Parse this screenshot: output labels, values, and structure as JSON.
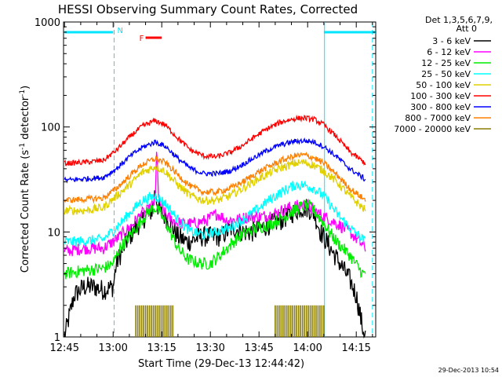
{
  "chart_data": {
    "type": "line",
    "title": "HESSI Observing Summary Count Rates, Corrected",
    "xlabel": "Start Time (29-Dec-13 12:44:42)",
    "ylabel_main": "Corrected Count Rate (s",
    "ylabel_sup1": "-1",
    "ylabel_mid": " detector",
    "ylabel_sup2": "-1",
    "ylabel_end": ")",
    "yscale": "log",
    "ylim": [
      1,
      1000
    ],
    "xlim": [
      -0.3,
      96
    ],
    "x_unit": "minutes after 12:45",
    "xtick_labels": [
      {
        "t": 0,
        "label": "12:45"
      },
      {
        "t": 15,
        "label": "13:00"
      },
      {
        "t": 30,
        "label": "13:15"
      },
      {
        "t": 45,
        "label": "13:30"
      },
      {
        "t": 60,
        "label": "13:45"
      },
      {
        "t": 75,
        "label": "14:00"
      },
      {
        "t": 90,
        "label": "14:15"
      }
    ],
    "ytick_labels": [
      {
        "v": 1,
        "label": "1"
      },
      {
        "v": 10,
        "label": "10"
      },
      {
        "v": 100,
        "label": "100"
      },
      {
        "v": 1000,
        "label": "1000"
      }
    ],
    "legend": {
      "header1": "Det 1,3,5,6,7,9,",
      "header2": "Att 0",
      "position": "right"
    },
    "series": [
      {
        "name": "3 - 6 keV",
        "color": "#000000",
        "points": [
          [
            0,
            1
          ],
          [
            3,
            2.5
          ],
          [
            6,
            3
          ],
          [
            9,
            3
          ],
          [
            12,
            2.8
          ],
          [
            15,
            3
          ],
          [
            16,
            5
          ],
          [
            19,
            8
          ],
          [
            22,
            11
          ],
          [
            25,
            14
          ],
          [
            27,
            16
          ],
          [
            28,
            25
          ],
          [
            29,
            16
          ],
          [
            30,
            15
          ],
          [
            32,
            13
          ],
          [
            35,
            9
          ],
          [
            38,
            8
          ],
          [
            42,
            9
          ],
          [
            45,
            9
          ],
          [
            48,
            9
          ],
          [
            50,
            10
          ],
          [
            52,
            11
          ],
          [
            55,
            10
          ],
          [
            58,
            10
          ],
          [
            61,
            11
          ],
          [
            64,
            12
          ],
          [
            67,
            13
          ],
          [
            70,
            15
          ],
          [
            73,
            17
          ],
          [
            75,
            17
          ],
          [
            77,
            15
          ],
          [
            79,
            10
          ],
          [
            82,
            7
          ],
          [
            85,
            5
          ],
          [
            88,
            3.5
          ],
          [
            90,
            2.5
          ],
          [
            92,
            1.2
          ],
          [
            93,
            1
          ]
        ]
      },
      {
        "name": "6 - 12 keV",
        "color": "#ff00ff",
        "points": [
          [
            0,
            6.5
          ],
          [
            6,
            7
          ],
          [
            12,
            7
          ],
          [
            16,
            8.5
          ],
          [
            20,
            11
          ],
          [
            24,
            15
          ],
          [
            26,
            16
          ],
          [
            28,
            20
          ],
          [
            28.5,
            70
          ],
          [
            29,
            20
          ],
          [
            31,
            15
          ],
          [
            33,
            13
          ],
          [
            36,
            12
          ],
          [
            40,
            12
          ],
          [
            44,
            13
          ],
          [
            47,
            15
          ],
          [
            50,
            13
          ],
          [
            53,
            13
          ],
          [
            57,
            14
          ],
          [
            61,
            14
          ],
          [
            65,
            15
          ],
          [
            69,
            17
          ],
          [
            73,
            18
          ],
          [
            75,
            18
          ],
          [
            77,
            16
          ],
          [
            80,
            14
          ],
          [
            84,
            12
          ],
          [
            88,
            10
          ],
          [
            92,
            7.5
          ],
          [
            93,
            7
          ]
        ]
      },
      {
        "name": "12 - 25 keV",
        "color": "#00ee00",
        "points": [
          [
            0,
            4
          ],
          [
            6,
            4.3
          ],
          [
            12,
            4.5
          ],
          [
            15,
            5
          ],
          [
            17,
            7
          ],
          [
            20,
            9
          ],
          [
            23,
            12
          ],
          [
            26,
            16
          ],
          [
            28,
            17
          ],
          [
            29,
            16
          ],
          [
            32,
            11
          ],
          [
            35,
            7
          ],
          [
            38,
            5.5
          ],
          [
            42,
            5
          ],
          [
            45,
            5
          ],
          [
            48,
            6
          ],
          [
            52,
            8
          ],
          [
            56,
            10
          ],
          [
            60,
            11
          ],
          [
            64,
            12
          ],
          [
            68,
            14
          ],
          [
            72,
            17
          ],
          [
            75,
            18
          ],
          [
            77,
            16
          ],
          [
            80,
            12
          ],
          [
            84,
            8
          ],
          [
            88,
            6
          ],
          [
            92,
            4
          ],
          [
            93,
            4
          ]
        ]
      },
      {
        "name": "25 - 50 keV",
        "color": "#00ffff",
        "points": [
          [
            0,
            8
          ],
          [
            6,
            8.2
          ],
          [
            12,
            8.5
          ],
          [
            16,
            11
          ],
          [
            20,
            15
          ],
          [
            24,
            20
          ],
          [
            28,
            22
          ],
          [
            31,
            19
          ],
          [
            35,
            13
          ],
          [
            39,
            10
          ],
          [
            43,
            9.5
          ],
          [
            47,
            10
          ],
          [
            51,
            11
          ],
          [
            55,
            13
          ],
          [
            59,
            16
          ],
          [
            63,
            20
          ],
          [
            67,
            24
          ],
          [
            71,
            28
          ],
          [
            74,
            28
          ],
          [
            77,
            26
          ],
          [
            80,
            22
          ],
          [
            84,
            15
          ],
          [
            88,
            11
          ],
          [
            92,
            8.5
          ],
          [
            93,
            8
          ]
        ]
      },
      {
        "name": "50 - 100 keV",
        "color": "#e0d000",
        "points": [
          [
            0,
            16
          ],
          [
            6,
            16
          ],
          [
            12,
            17
          ],
          [
            16,
            22
          ],
          [
            20,
            28
          ],
          [
            24,
            37
          ],
          [
            28,
            42
          ],
          [
            31,
            38
          ],
          [
            35,
            28
          ],
          [
            39,
            22
          ],
          [
            43,
            20
          ],
          [
            47,
            20
          ],
          [
            51,
            22
          ],
          [
            55,
            26
          ],
          [
            59,
            31
          ],
          [
            63,
            36
          ],
          [
            67,
            41
          ],
          [
            71,
            45
          ],
          [
            74,
            46
          ],
          [
            77,
            43
          ],
          [
            80,
            38
          ],
          [
            84,
            30
          ],
          [
            88,
            22
          ],
          [
            92,
            17
          ],
          [
            93,
            16
          ]
        ]
      },
      {
        "name": "100 - 300 keV",
        "color": "#ff0000",
        "points": [
          [
            0,
            45
          ],
          [
            6,
            46
          ],
          [
            12,
            48
          ],
          [
            16,
            60
          ],
          [
            20,
            80
          ],
          [
            24,
            102
          ],
          [
            28,
            115
          ],
          [
            31,
            105
          ],
          [
            35,
            78
          ],
          [
            39,
            60
          ],
          [
            43,
            53
          ],
          [
            47,
            52
          ],
          [
            51,
            57
          ],
          [
            55,
            67
          ],
          [
            59,
            82
          ],
          [
            63,
            98
          ],
          [
            67,
            112
          ],
          [
            71,
            120
          ],
          [
            74,
            122
          ],
          [
            77,
            118
          ],
          [
            80,
            105
          ],
          [
            84,
            80
          ],
          [
            88,
            58
          ],
          [
            92,
            47
          ],
          [
            93,
            45
          ]
        ]
      },
      {
        "name": "300 - 800 keV",
        "color": "#0000ff",
        "points": [
          [
            0,
            31
          ],
          [
            6,
            32
          ],
          [
            12,
            33
          ],
          [
            16,
            40
          ],
          [
            20,
            52
          ],
          [
            24,
            64
          ],
          [
            28,
            72
          ],
          [
            31,
            66
          ],
          [
            35,
            50
          ],
          [
            39,
            40
          ],
          [
            43,
            36
          ],
          [
            47,
            36
          ],
          [
            51,
            38
          ],
          [
            55,
            44
          ],
          [
            59,
            52
          ],
          [
            63,
            61
          ],
          [
            67,
            68
          ],
          [
            71,
            73
          ],
          [
            74,
            74
          ],
          [
            77,
            72
          ],
          [
            80,
            65
          ],
          [
            84,
            52
          ],
          [
            88,
            40
          ],
          [
            92,
            33
          ],
          [
            93,
            31
          ]
        ]
      },
      {
        "name": "800 - 7000 keV",
        "color": "#ff8000",
        "points": [
          [
            0,
            20
          ],
          [
            6,
            20.5
          ],
          [
            12,
            21
          ],
          [
            16,
            26
          ],
          [
            20,
            34
          ],
          [
            24,
            44
          ],
          [
            28,
            50
          ],
          [
            31,
            46
          ],
          [
            35,
            35
          ],
          [
            39,
            27
          ],
          [
            43,
            24
          ],
          [
            47,
            24
          ],
          [
            51,
            26
          ],
          [
            55,
            30
          ],
          [
            59,
            36
          ],
          [
            63,
            42
          ],
          [
            67,
            48
          ],
          [
            71,
            53
          ],
          [
            74,
            54
          ],
          [
            77,
            51
          ],
          [
            80,
            45
          ],
          [
            84,
            35
          ],
          [
            88,
            26
          ],
          [
            92,
            21
          ],
          [
            93,
            20
          ]
        ]
      },
      {
        "name": "7000 - 20000 keV",
        "color": "#8b7d00",
        "points": [
          [
            22,
            2
          ],
          [
            22,
            1
          ],
          [
            34,
            1
          ],
          [
            34,
            2
          ],
          [
            65,
            2
          ],
          [
            65,
            1
          ],
          [
            80,
            1
          ],
          [
            80,
            2
          ]
        ]
      }
    ],
    "annotations": {
      "n_label": "N",
      "f_label": "F",
      "night_bars": [
        [
          0,
          15
        ],
        [
          80,
          96
        ]
      ],
      "saa_dashed_lines_t": [
        15.3,
        95
      ],
      "solid_vline_t": 80.2,
      "night_color": "#00e5ff",
      "flare_color": "#ff0000",
      "flare_bar_t": [
        25,
        30
      ],
      "flare_bar_y": 560
    },
    "grid": false
  },
  "timestamp": "29-Dec-2013 10:54"
}
